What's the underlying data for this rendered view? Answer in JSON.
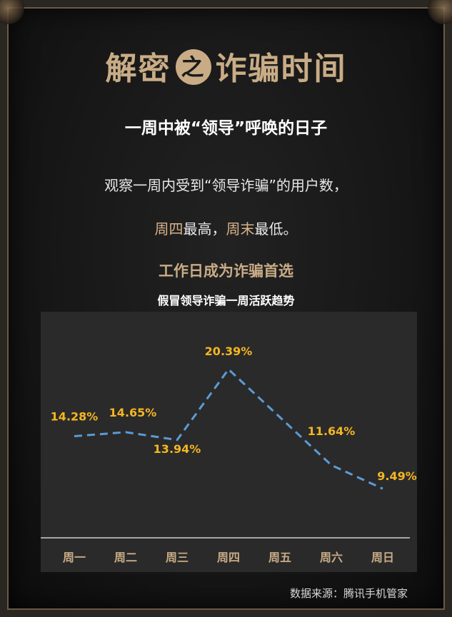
{
  "header": {
    "title_part1": "解密",
    "title_connector": "之",
    "title_part2": "诈骗时间",
    "subtitle": "一周中被“领导”呼唤的日子"
  },
  "description": {
    "line1": "观察一周内受到“领导诈骗”的用户数，",
    "line2_hl1": "周四",
    "line2_t1": "最高，",
    "line2_hl2": "周末",
    "line2_t2": "最低。"
  },
  "highlight": "工作日成为诈骗首选",
  "chart_data": {
    "type": "line",
    "title": "假冒领导诈骗一周活跃趋势",
    "categories": [
      "周一",
      "周二",
      "周三",
      "周四",
      "周五",
      "周六",
      "周日"
    ],
    "series": [
      {
        "values": [
          14.28,
          14.65,
          13.94,
          20.39,
          null,
          11.64,
          9.49
        ],
        "data_labels": [
          "14.28%",
          "14.65%",
          "13.94%",
          "20.39%",
          null,
          "11.64%",
          "9.49%"
        ]
      }
    ],
    "line_color": "#5b9bd5",
    "line_style": "dashed",
    "label_color": "#f5b622",
    "grid": false
  },
  "footer": {
    "source": "数据来源：腾讯手机管家"
  }
}
